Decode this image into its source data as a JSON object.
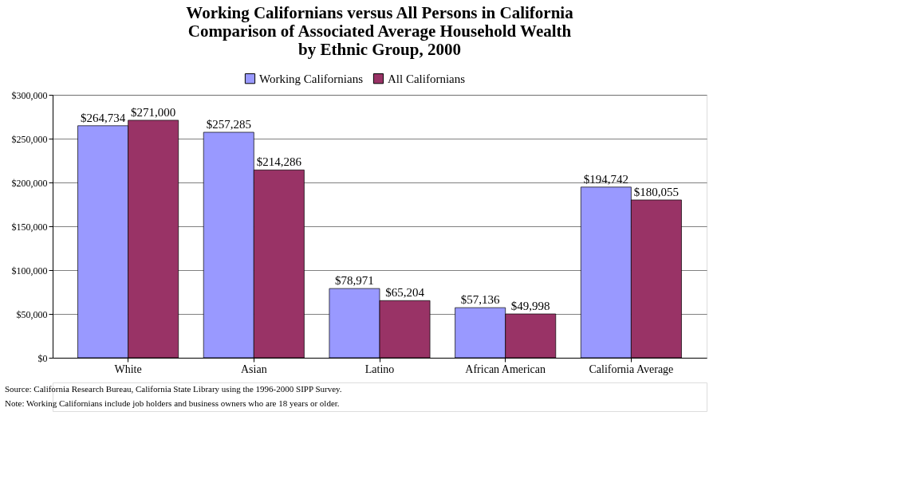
{
  "chart_data": {
    "type": "bar",
    "title": [
      "Working Californians versus All Persons in California",
      "Comparison of Associated Average Household Wealth",
      "by Ethnic Group, 2000"
    ],
    "categories": [
      "White",
      "Asian",
      "Latino",
      "African American",
      "California Average"
    ],
    "series": [
      {
        "name": "Working Californians",
        "color": "#9999ff",
        "values": [
          264734,
          257285,
          78971,
          57136,
          194742
        ],
        "value_labels": [
          "$264,734",
          "$257,285",
          "$78,971",
          "$57,136",
          "$194,742"
        ]
      },
      {
        "name": "All Californians",
        "color": "#993366",
        "values": [
          271000,
          214286,
          65204,
          49998,
          180055
        ],
        "value_labels": [
          "$271,000",
          "$214,286",
          "$65,204",
          "$49,998",
          "$180,055"
        ]
      }
    ],
    "ylim": [
      0,
      300000
    ],
    "yticks": [
      {
        "value": 0,
        "label": "$0"
      },
      {
        "value": 50000,
        "label": "$50,000"
      },
      {
        "value": 100000,
        "label": "$100,000"
      },
      {
        "value": 150000,
        "label": "$150,000"
      },
      {
        "value": 200000,
        "label": "$200,000"
      },
      {
        "value": 250000,
        "label": "$250,000"
      },
      {
        "value": 300000,
        "label": "$300,000"
      }
    ],
    "grid": "y",
    "legend": "top",
    "annotations": [
      "Source:  California Research Bureau, California State Library using the 1996-2000 SIPP Survey.",
      "Note:  Working Californians include job holders and business owners who are 18 years or older."
    ]
  }
}
